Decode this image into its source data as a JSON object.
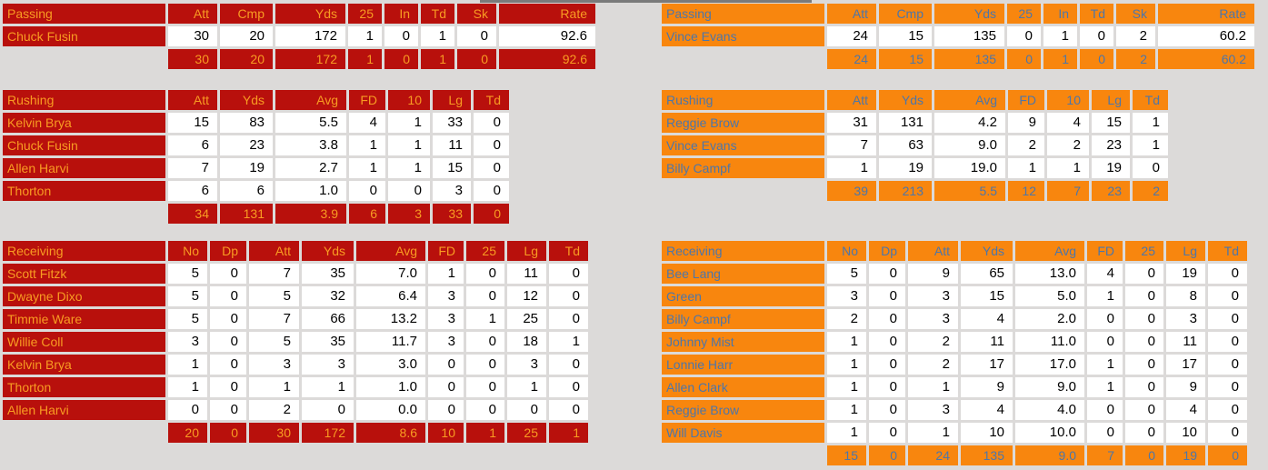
{
  "theme": {
    "page_bg": "#dcdad9",
    "partial_strip": "#7a7a7a",
    "cell_bg": "#ffffff",
    "cell_text": "#000000",
    "left": {
      "bg": "#b8100c",
      "text": "#f89b22"
    },
    "right": {
      "bg": "#f8860e",
      "text": "#4e76a8"
    }
  },
  "teams": [
    {
      "side": "left",
      "passing": {
        "title": "Passing",
        "headers": [
          "Att",
          "Cmp",
          "Yds",
          "25",
          "In",
          "Td",
          "Sk",
          "Rate"
        ],
        "rows": [
          {
            "name": "Chuck Fusin",
            "values": [
              "30",
              "20",
              "172",
              "1",
              "0",
              "1",
              "0",
              "92.6"
            ]
          }
        ],
        "totals": [
          "30",
          "20",
          "172",
          "1",
          "0",
          "1",
          "0",
          "92.6"
        ]
      },
      "rushing": {
        "title": "Rushing",
        "headers": [
          "Att",
          "Yds",
          "Avg",
          "FD",
          "10",
          "Lg",
          "Td"
        ],
        "rows": [
          {
            "name": "Kelvin Brya",
            "values": [
              "15",
              "83",
              "5.5",
              "4",
              "1",
              "33",
              "0"
            ]
          },
          {
            "name": "Chuck Fusin",
            "values": [
              "6",
              "23",
              "3.8",
              "1",
              "1",
              "11",
              "0"
            ]
          },
          {
            "name": "Allen Harvi",
            "values": [
              "7",
              "19",
              "2.7",
              "1",
              "1",
              "15",
              "0"
            ]
          },
          {
            "name": "Thorton",
            "values": [
              "6",
              "6",
              "1.0",
              "0",
              "0",
              "3",
              "0"
            ]
          }
        ],
        "totals": [
          "34",
          "131",
          "3.9",
          "6",
          "3",
          "33",
          "0"
        ]
      },
      "receiving": {
        "title": "Receiving",
        "headers": [
          "No",
          "Dp",
          "Att",
          "Yds",
          "Avg",
          "FD",
          "25",
          "Lg",
          "Td"
        ],
        "rows": [
          {
            "name": "Scott Fitzk",
            "values": [
              "5",
              "0",
              "7",
              "35",
              "7.0",
              "1",
              "0",
              "11",
              "0"
            ]
          },
          {
            "name": "Dwayne Dixo",
            "values": [
              "5",
              "0",
              "5",
              "32",
              "6.4",
              "3",
              "0",
              "12",
              "0"
            ]
          },
          {
            "name": "Timmie Ware",
            "values": [
              "5",
              "0",
              "7",
              "66",
              "13.2",
              "3",
              "1",
              "25",
              "0"
            ]
          },
          {
            "name": "Willie Coll",
            "values": [
              "3",
              "0",
              "5",
              "35",
              "11.7",
              "3",
              "0",
              "18",
              "1"
            ]
          },
          {
            "name": "Kelvin Brya",
            "values": [
              "1",
              "0",
              "3",
              "3",
              "3.0",
              "0",
              "0",
              "3",
              "0"
            ]
          },
          {
            "name": "Thorton",
            "values": [
              "1",
              "0",
              "1",
              "1",
              "1.0",
              "0",
              "0",
              "1",
              "0"
            ]
          },
          {
            "name": "Allen Harvi",
            "values": [
              "0",
              "0",
              "2",
              "0",
              "0.0",
              "0",
              "0",
              "0",
              "0"
            ]
          }
        ],
        "totals": [
          "20",
          "0",
          "30",
          "172",
          "8.6",
          "10",
          "1",
          "25",
          "1"
        ]
      }
    },
    {
      "side": "right",
      "passing": {
        "title": "Passing",
        "headers": [
          "Att",
          "Cmp",
          "Yds",
          "25",
          "In",
          "Td",
          "Sk",
          "Rate"
        ],
        "rows": [
          {
            "name": "Vince Evans",
            "values": [
              "24",
              "15",
              "135",
              "0",
              "1",
              "0",
              "2",
              "60.2"
            ]
          }
        ],
        "totals": [
          "24",
          "15",
          "135",
          "0",
          "1",
          "0",
          "2",
          "60.2"
        ]
      },
      "rushing": {
        "title": "Rushing",
        "headers": [
          "Att",
          "Yds",
          "Avg",
          "FD",
          "10",
          "Lg",
          "Td"
        ],
        "rows": [
          {
            "name": "Reggie Brow",
            "values": [
              "31",
              "131",
              "4.2",
              "9",
              "4",
              "15",
              "1"
            ]
          },
          {
            "name": "Vince Evans",
            "values": [
              "7",
              "63",
              "9.0",
              "2",
              "2",
              "23",
              "1"
            ]
          },
          {
            "name": "Billy Campf",
            "values": [
              "1",
              "19",
              "19.0",
              "1",
              "1",
              "19",
              "0"
            ]
          }
        ],
        "totals": [
          "39",
          "213",
          "5.5",
          "12",
          "7",
          "23",
          "2"
        ]
      },
      "receiving": {
        "title": "Receiving",
        "headers": [
          "No",
          "Dp",
          "Att",
          "Yds",
          "Avg",
          "FD",
          "25",
          "Lg",
          "Td"
        ],
        "rows": [
          {
            "name": "Bee Lang",
            "values": [
              "5",
              "0",
              "9",
              "65",
              "13.0",
              "4",
              "0",
              "19",
              "0"
            ]
          },
          {
            "name": "Green",
            "values": [
              "3",
              "0",
              "3",
              "15",
              "5.0",
              "1",
              "0",
              "8",
              "0"
            ]
          },
          {
            "name": "Billy Campf",
            "values": [
              "2",
              "0",
              "3",
              "4",
              "2.0",
              "0",
              "0",
              "3",
              "0"
            ]
          },
          {
            "name": "Johnny Mist",
            "values": [
              "1",
              "0",
              "2",
              "11",
              "11.0",
              "0",
              "0",
              "11",
              "0"
            ]
          },
          {
            "name": "Lonnie Harr",
            "values": [
              "1",
              "0",
              "2",
              "17",
              "17.0",
              "1",
              "0",
              "17",
              "0"
            ]
          },
          {
            "name": "Allen Clark",
            "values": [
              "1",
              "0",
              "1",
              "9",
              "9.0",
              "1",
              "0",
              "9",
              "0"
            ]
          },
          {
            "name": "Reggie Brow",
            "values": [
              "1",
              "0",
              "3",
              "4",
              "4.0",
              "0",
              "0",
              "4",
              "0"
            ]
          },
          {
            "name": "Will Davis",
            "values": [
              "1",
              "0",
              "1",
              "10",
              "10.0",
              "0",
              "0",
              "10",
              "0"
            ]
          }
        ],
        "totals": [
          "15",
          "0",
          "24",
          "135",
          "9.0",
          "7",
          "0",
          "19",
          "0"
        ]
      }
    }
  ]
}
